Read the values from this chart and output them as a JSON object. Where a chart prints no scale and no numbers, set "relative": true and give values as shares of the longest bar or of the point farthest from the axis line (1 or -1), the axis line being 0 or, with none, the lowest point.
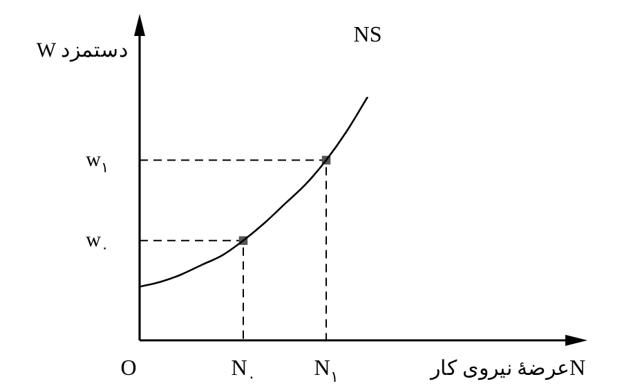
{
  "chart_data": {
    "type": "line",
    "relative": true,
    "xlabel": "عرضهٔ نیروی کار",
    "ylabel": "W دستمزد",
    "categories": [
      "O",
      null,
      null,
      null,
      null,
      "N$_{۰}$",
      null,
      null,
      null,
      "N$_{۱}$",
      null,
      null,
      null,
      null,
      null,
      null,
      null,
      null,
      null,
      null,
      null,
      "N"
    ],
    "series": [
      {
        "name": "NS",
        "color": "#000000",
        "values": [
          0.22,
          0.24,
          0.27,
          0.31,
          0.35,
          0.41,
          0.48,
          0.56,
          0.64,
          0.74,
          0.86,
          1,
          null,
          null,
          null,
          null,
          null,
          null,
          null,
          null,
          null,
          null
        ],
        "marker": "none"
      },
      {
        "type": "scatter",
        "color": "#555555",
        "x": [
          "N$_{۰}$",
          "N$_{۱}$"
        ],
        "values": [
          0.41,
          0.74
        ],
        "marker": "square"
      }
    ],
    "annotations": [
      "w$_{۰}$",
      "w$_{۱}$"
    ]
  }
}
